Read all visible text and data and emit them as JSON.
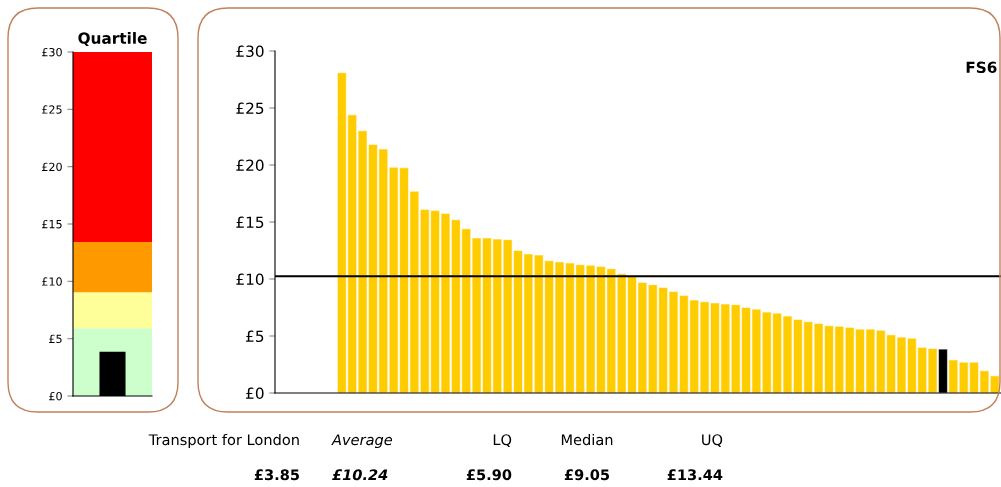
{
  "chart_data": [
    {
      "type": "bar",
      "title": "Quartile",
      "categories": [
        null
      ],
      "values": [
        3.85
      ],
      "colors": [
        "#000000"
      ],
      "ylim": [
        0,
        30
      ],
      "yticks": [
        {
          "value": 0,
          "label": "£0"
        },
        {
          "value": 5,
          "label": "£5"
        },
        {
          "value": 10,
          "label": "£10"
        },
        {
          "value": 15,
          "label": "£15"
        },
        {
          "value": 20,
          "label": "£20"
        },
        {
          "value": 25,
          "label": "£25"
        },
        {
          "value": 30,
          "label": "£30"
        }
      ],
      "tick_labels": "y",
      "bands": [
        {
          "axis": "y",
          "from": 0,
          "to": 5.9,
          "color": "#ccffcc"
        },
        {
          "axis": "y",
          "from": 5.9,
          "to": 9.05,
          "color": "#ffff99"
        },
        {
          "axis": "y",
          "from": 9.05,
          "to": 13.44,
          "color": "#ff9900"
        },
        {
          "axis": "y",
          "from": 13.44,
          "to": 30,
          "color": "#ff0000"
        }
      ]
    },
    {
      "type": "bar",
      "title": "FS6",
      "categories": [
        null,
        null,
        null,
        null,
        null,
        null,
        null,
        null,
        null,
        null,
        null,
        null,
        null,
        null,
        null,
        null,
        null,
        null,
        null,
        null,
        null,
        null,
        null,
        null,
        null,
        null,
        null,
        null,
        null,
        null,
        null,
        null,
        null,
        null,
        null,
        null,
        null,
        null,
        null,
        null,
        null,
        null,
        null,
        null,
        null,
        null,
        null,
        null,
        null,
        null,
        null,
        null,
        null,
        null,
        null,
        null,
        null,
        null,
        null,
        null,
        null,
        null,
        null,
        null
      ],
      "values": [
        28.1,
        24.4,
        23.0,
        21.8,
        21.4,
        19.8,
        19.75,
        17.7,
        16.1,
        16.0,
        15.75,
        15.2,
        14.4,
        13.6,
        13.6,
        13.5,
        13.45,
        12.5,
        12.2,
        12.1,
        11.6,
        11.5,
        11.4,
        11.25,
        11.2,
        11.1,
        10.9,
        10.45,
        10.25,
        9.7,
        9.5,
        9.25,
        8.9,
        8.55,
        8.15,
        8.0,
        7.9,
        7.8,
        7.75,
        7.5,
        7.35,
        7.1,
        7.0,
        6.75,
        6.45,
        6.25,
        6.1,
        5.9,
        5.85,
        5.75,
        5.6,
        5.6,
        5.5,
        5.1,
        4.9,
        4.8,
        4.0,
        3.9,
        3.85,
        2.9,
        2.7,
        2.7,
        1.95,
        1.5
      ],
      "colors": [
        "#ffcc00",
        "#ffcc00",
        "#ffcc00",
        "#ffcc00",
        "#ffcc00",
        "#ffcc00",
        "#ffcc00",
        "#ffcc00",
        "#ffcc00",
        "#ffcc00",
        "#ffcc00",
        "#ffcc00",
        "#ffcc00",
        "#ffcc00",
        "#ffcc00",
        "#ffcc00",
        "#ffcc00",
        "#ffcc00",
        "#ffcc00",
        "#ffcc00",
        "#ffcc00",
        "#ffcc00",
        "#ffcc00",
        "#ffcc00",
        "#ffcc00",
        "#ffcc00",
        "#ffcc00",
        "#ffcc00",
        "#ffcc00",
        "#ffcc00",
        "#ffcc00",
        "#ffcc00",
        "#ffcc00",
        "#ffcc00",
        "#ffcc00",
        "#ffcc00",
        "#ffcc00",
        "#ffcc00",
        "#ffcc00",
        "#ffcc00",
        "#ffcc00",
        "#ffcc00",
        "#ffcc00",
        "#ffcc00",
        "#ffcc00",
        "#ffcc00",
        "#ffcc00",
        "#ffcc00",
        "#ffcc00",
        "#ffcc00",
        "#ffcc00",
        "#ffcc00",
        "#ffcc00",
        "#ffcc00",
        "#ffcc00",
        "#ffcc00",
        "#ffcc00",
        "#ffcc00",
        "#000000",
        "#ffcc00",
        "#ffcc00",
        "#ffcc00",
        "#ffcc00",
        "#ffcc00"
      ],
      "ylim": [
        0,
        30
      ],
      "yticks": [
        {
          "value": 0,
          "label": "£0"
        },
        {
          "value": 5,
          "label": "£5"
        },
        {
          "value": 10,
          "label": "£10"
        },
        {
          "value": 15,
          "label": "£15"
        },
        {
          "value": 20,
          "label": "£20"
        },
        {
          "value": 25,
          "label": "£25"
        },
        {
          "value": 30,
          "label": "£30"
        }
      ],
      "tick_labels": "y",
      "ref_lines": [
        {
          "axis": "y",
          "value": 10.24,
          "color": "#000000"
        }
      ]
    },
    {
      "type": "other",
      "annotations": [
        "Transport for London",
        "Average",
        "LQ",
        "Median",
        "UQ",
        "£3.85",
        "£10.24",
        "£5.90",
        "£9.05",
        "£13.44"
      ]
    }
  ]
}
